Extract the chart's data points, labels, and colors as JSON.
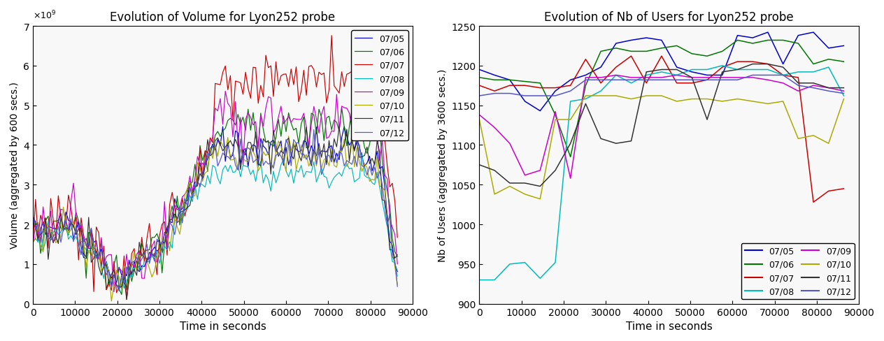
{
  "title_left": "Evolution of Volume for Lyon252 probe",
  "title_right": "Evolution of Nb of Users for Lyon252 probe",
  "xlabel": "Time in seconds",
  "ylabel_left": "Volume (aggregated by 600 secs.)",
  "ylabel_right": "Nb of Users (aggregated by 3600 secs.)",
  "xlim": [
    0,
    90000
  ],
  "ylim_left": [
    0,
    7000000000.0
  ],
  "ylim_right": [
    900,
    1250
  ],
  "yticks_left": [
    0,
    1000000000.0,
    2000000000.0,
    3000000000.0,
    4000000000.0,
    5000000000.0,
    6000000000.0,
    7000000000.0
  ],
  "ytick_labels_left": [
    "0",
    "1",
    "2",
    "3",
    "4",
    "5",
    "6",
    "7"
  ],
  "xticks": [
    0,
    10000,
    20000,
    30000,
    40000,
    50000,
    60000,
    70000,
    80000,
    90000
  ],
  "colors": {
    "07/05": "#0000cc",
    "07/06": "#007700",
    "07/07": "#cc0000",
    "07/08": "#00bbbb",
    "07/09": "#cc00cc",
    "07/10": "#aaaa00",
    "07/11": "#333333",
    "07/12": "#5555cc"
  },
  "legend_labels": [
    "07/05",
    "07/06",
    "07/07",
    "07/08",
    "07/09",
    "07/10",
    "07/11",
    "07/12"
  ],
  "bg_color": "#f0f0f0",
  "title_fontsize": 12,
  "label_fontsize": 11,
  "tick_fontsize": 10,
  "legend_fontsize": 9,
  "linewidth": 0.85
}
